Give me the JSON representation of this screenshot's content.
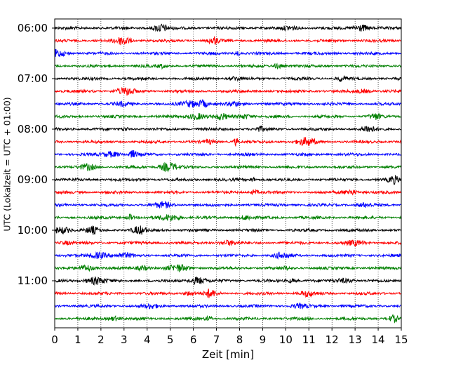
{
  "chart_data": {
    "type": "line",
    "title": "",
    "xlabel": "Zeit  [min]",
    "ylabel": "UTC (Lokalzeit = UTC + 01:00)",
    "x_range": [
      0,
      15
    ],
    "x_ticks": [
      0,
      1,
      2,
      3,
      4,
      5,
      6,
      7,
      8,
      9,
      10,
      11,
      12,
      13,
      14,
      15
    ],
    "y_tick_labels": [
      "06:00",
      "07:00",
      "08:00",
      "09:00",
      "10:00",
      "11:00"
    ],
    "trace_start_times": [
      "06:00",
      "06:15",
      "06:30",
      "06:45",
      "07:00",
      "07:15",
      "07:30",
      "07:45",
      "08:00",
      "08:15",
      "08:30",
      "08:45",
      "09:00",
      "09:15",
      "09:30",
      "09:45",
      "10:00",
      "10:15",
      "10:30",
      "10:45",
      "11:00",
      "11:15",
      "11:30",
      "11:45"
    ],
    "trace_minutes_each": 15,
    "trace_colors": [
      "#000000",
      "#ff0000",
      "#0000ff",
      "#008000"
    ],
    "vertical_grid": "dotted, every minute",
    "horizontal_grid": false
  }
}
